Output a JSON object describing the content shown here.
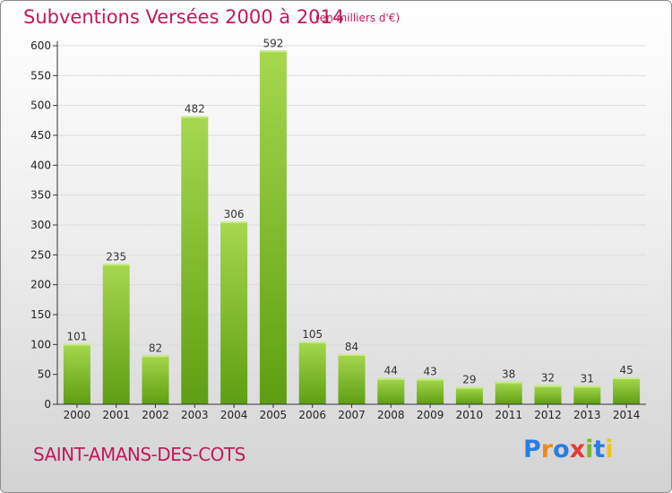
{
  "header": {
    "title": "Subventions Versées 2000 à 2014",
    "subtitle": "(en milliers d'€)"
  },
  "footer": {
    "commune": "SAINT-AMANS-DES-COTS",
    "logo": "Proxiti"
  },
  "colors": {
    "title": "#c2185b",
    "bar_light": "#a6d84e",
    "bar_dark": "#5e9e12",
    "axis": "#333333",
    "grid": "#dddddd"
  },
  "chart_data": {
    "type": "bar",
    "title": "Subventions Versées 2000 à 2014",
    "subtitle": "(en milliers d'€)",
    "categories": [
      "2000",
      "2001",
      "2002",
      "2003",
      "2004",
      "2005",
      "2006",
      "2007",
      "2008",
      "2009",
      "2010",
      "2011",
      "2012",
      "2013",
      "2014"
    ],
    "values": [
      101,
      235,
      82,
      482,
      306,
      592,
      105,
      84,
      44,
      43,
      29,
      38,
      32,
      31,
      45
    ],
    "ylim": [
      0,
      600
    ],
    "yticks": [
      0,
      50,
      100,
      150,
      200,
      250,
      300,
      350,
      400,
      450,
      500,
      550,
      600
    ],
    "grid": true,
    "legend": "none"
  }
}
